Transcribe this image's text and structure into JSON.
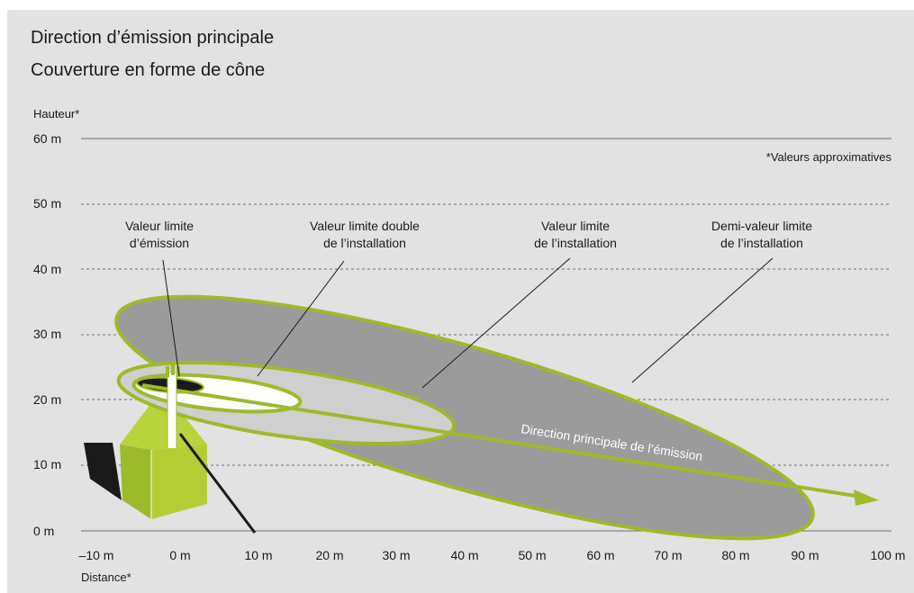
{
  "title": {
    "line1": "Direction d’émission principale",
    "line2": "Couverture en forme de cône"
  },
  "axes": {
    "y_title": "Hauteur*",
    "x_title": "Distance*",
    "y_ticks": [
      "60 m",
      "50 m",
      "40 m",
      "30 m",
      "20 m",
      "10 m",
      "0 m"
    ],
    "x_ticks": [
      "–10 m",
      "0 m",
      "10 m",
      "20 m",
      "30 m",
      "40 m",
      "50 m",
      "60 m",
      "70 m",
      "80 m",
      "90 m",
      "100 m"
    ]
  },
  "footnote": "*Valeurs approximatives",
  "labels": {
    "emission_line1": "Valeur limite",
    "emission_line2": "d’émission",
    "double_line1": "Valeur limite double",
    "double_line2": "de l’installation",
    "install_line1": "Valeur limite",
    "install_line2": "de l’installation",
    "half_line1": "Demi-valeur limite",
    "half_line2": "de l’installation"
  },
  "direction_label": "Direction principale de l’émission",
  "colors": {
    "background": "#e2e2e2",
    "accent_green": "#9dba2a",
    "half_zone": "#9b9b9b",
    "install_zone": "#cfcfcf",
    "double_zone": "#ffffff",
    "emission_zone": "#1a1a1a",
    "gridline": "#6e6e6e"
  }
}
